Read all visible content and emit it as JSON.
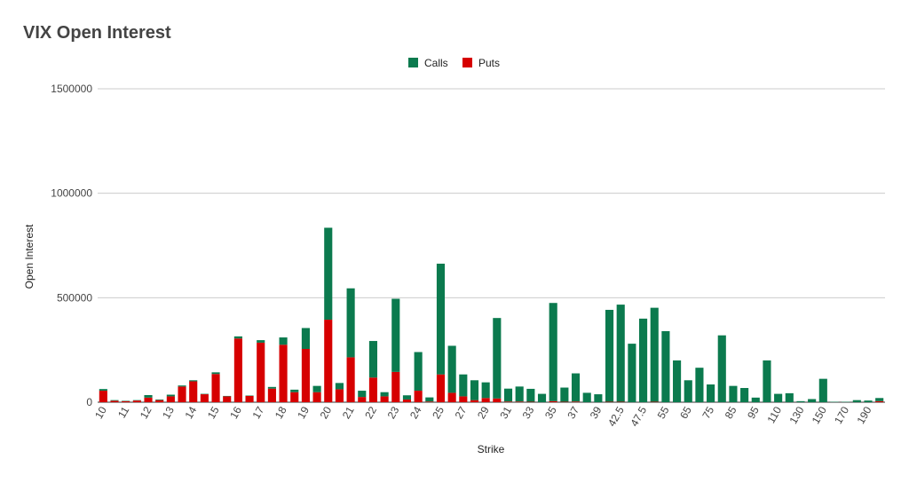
{
  "chart_data": {
    "type": "bar",
    "stacked": true,
    "title": "VIX Open Interest",
    "xlabel": "Strike",
    "ylabel": "Open Interest",
    "ylim": [
      0,
      1500000
    ],
    "yticks": [
      "0",
      "500000",
      "1000000",
      "1500000"
    ],
    "grid": true,
    "legend_position": "top",
    "categories": [
      "10",
      "10.5",
      "11",
      "11.5",
      "12",
      "12.5",
      "13",
      "13.5",
      "14",
      "14.5",
      "15",
      "15.5",
      "16",
      "16.5",
      "17",
      "17.5",
      "18",
      "18.5",
      "19",
      "19.5",
      "20",
      "20.5",
      "21",
      "21.5",
      "22",
      "22.5",
      "23",
      "23.5",
      "24",
      "24.5",
      "25",
      "26",
      "27",
      "28",
      "29",
      "30",
      "31",
      "32",
      "33",
      "34",
      "35",
      "36",
      "37",
      "38",
      "39",
      "40",
      "42.5",
      "45",
      "47.5",
      "50",
      "55",
      "60",
      "65",
      "70",
      "75",
      "80",
      "85",
      "90",
      "95",
      "100",
      "110",
      "120",
      "130",
      "140",
      "150",
      "160",
      "170",
      "180",
      "190",
      "200"
    ],
    "x_tick_labels": [
      "10",
      "11",
      "12",
      "13",
      "14",
      "15",
      "16",
      "17",
      "18",
      "19",
      "20",
      "21",
      "22",
      "23",
      "24",
      "25",
      "27",
      "29",
      "31",
      "33",
      "35",
      "37",
      "39",
      "42.5",
      "47.5",
      "55",
      "65",
      "75",
      "85",
      "95",
      "110",
      "130",
      "150",
      "170",
      "190"
    ],
    "series": [
      {
        "name": "Calls",
        "color": "#0b7a4e",
        "values": [
          8000,
          3000,
          2000,
          2000,
          12000,
          3000,
          8000,
          5000,
          5000,
          2000,
          8000,
          2000,
          10000,
          2000,
          12000,
          8000,
          35000,
          12000,
          100000,
          30000,
          440000,
          30000,
          330000,
          30000,
          175000,
          20000,
          350000,
          20000,
          185000,
          20000,
          530000,
          225000,
          105000,
          95000,
          75000,
          385000,
          62000,
          72000,
          62000,
          40000,
          470000,
          68000,
          135000,
          45000,
          38000,
          440000,
          465000,
          280000,
          400000,
          450000,
          340000,
          200000,
          105000,
          165000,
          85000,
          320000,
          78000,
          68000,
          22000,
          200000,
          40000,
          43000,
          5000,
          15000,
          112000,
          2000,
          2000,
          10000,
          8000,
          15000
        ]
      },
      {
        "name": "Puts",
        "color": "#d60000",
        "values": [
          55000,
          7000,
          5000,
          8000,
          22000,
          10000,
          28000,
          75000,
          100000,
          38000,
          135000,
          28000,
          305000,
          30000,
          285000,
          65000,
          275000,
          48000,
          255000,
          48000,
          395000,
          62000,
          215000,
          25000,
          118000,
          28000,
          145000,
          13000,
          55000,
          3000,
          133000,
          45000,
          28000,
          10000,
          20000,
          18000,
          3000,
          3000,
          2000,
          0,
          5000,
          2000,
          3000,
          0,
          0,
          2000,
          2000,
          0,
          0,
          2000,
          0,
          0,
          0,
          0,
          0,
          0,
          0,
          0,
          0,
          0,
          0,
          0,
          0,
          0,
          0,
          0,
          0,
          0,
          0,
          5000
        ]
      }
    ]
  }
}
